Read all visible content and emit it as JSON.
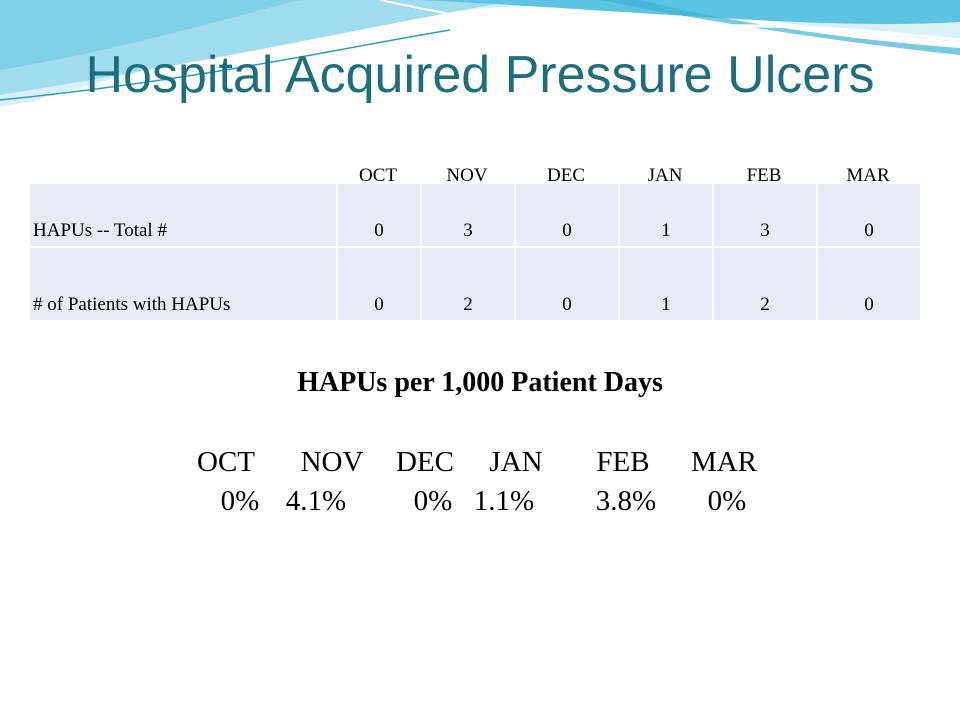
{
  "slide": {
    "title": "Hospital Acquired Pressure Ulcers"
  },
  "table": {
    "months": [
      "OCT",
      "NOV",
      "DEC",
      "JAN",
      "FEB",
      "MAR"
    ],
    "rows": [
      {
        "label": "HAPUs -- Total #",
        "values": [
          "0",
          "3",
          "0",
          "1",
          "3",
          "0"
        ]
      },
      {
        "label": "# of Patients with HAPUs",
        "values": [
          "0",
          "2",
          "0",
          "1",
          "2",
          "0"
        ]
      }
    ]
  },
  "rate": {
    "heading": "HAPUs per 1,000 Patient Days",
    "months": [
      "OCT",
      "NOV",
      "DEC",
      "JAN",
      "FEB",
      "MAR"
    ],
    "values": [
      "0%",
      "4.1%",
      "0%",
      "1.1%",
      "3.8%",
      "0%"
    ]
  },
  "colors": {
    "title": "#1e6f7e",
    "cell_fill": "#e8ebf5",
    "wave_light": "#bfe7f2",
    "wave_mid": "#5cc3e0"
  }
}
